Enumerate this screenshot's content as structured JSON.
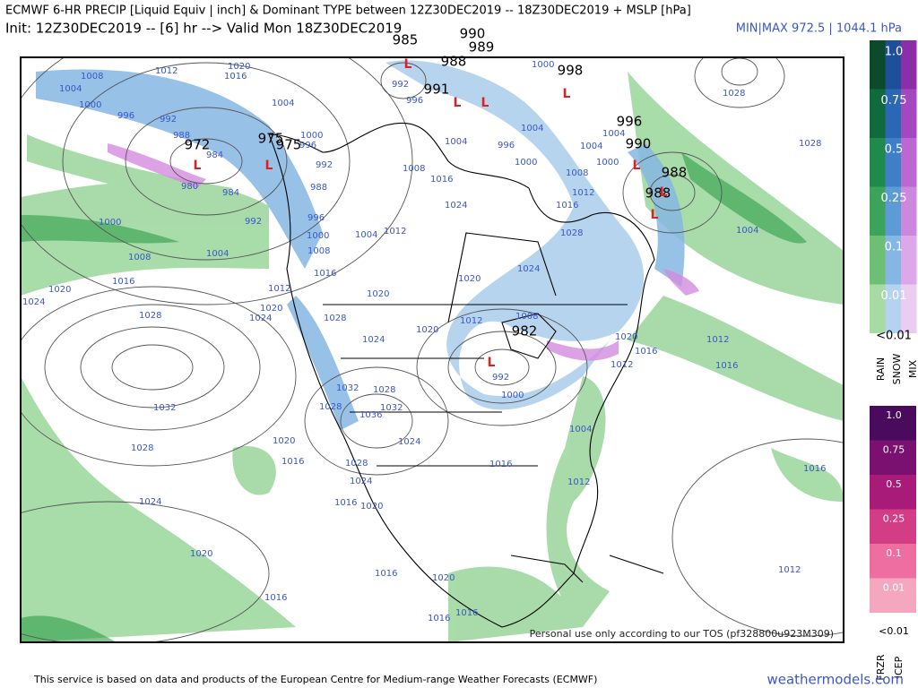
{
  "header": {
    "title": "ECMWF 6-HR PRECIP [Liquid Equiv | inch] & Dominant TYPE between 12Z30DEC2019 -- 18Z30DEC2019 + MSLP [hPa]",
    "init": "Init: 12Z30DEC2019 -- [6] hr --> Valid Mon 18Z30DEC2019",
    "minmax": "MIN|MAX 972.5 | 1044.1 hPa"
  },
  "legend_top": {
    "labels": [
      "1.0",
      "0.75",
      "0.5",
      "0.25",
      "0.1",
      "0.01"
    ],
    "below": "<0.01",
    "types": [
      "RAIN",
      "SNOW",
      "MIX"
    ]
  },
  "legend_bottom": {
    "labels": [
      "1.0",
      "0.75",
      "0.5",
      "0.25",
      "0.1",
      "0.01"
    ],
    "below": "<0.01",
    "types": [
      "FRZR",
      "ICEP"
    ]
  },
  "map": {
    "low_symbol": "L",
    "centers": [
      "985",
      "990",
      "989",
      "988",
      "998",
      "991",
      "972",
      "975",
      "975",
      "996",
      "990",
      "988",
      "988",
      "982"
    ],
    "isobar_labels": [
      "1012",
      "1008",
      "1004",
      "1000",
      "996",
      "992",
      "988",
      "984",
      "980",
      "984",
      "992",
      "1000",
      "1004",
      "1008",
      "1016",
      "1020",
      "1024",
      "1028",
      "1024",
      "1020",
      "1032",
      "1028",
      "1024",
      "1020",
      "1016",
      "1020",
      "1016",
      "1016",
      "1004",
      "1012",
      "1016",
      "1012",
      "1016",
      "1012",
      "1004",
      "1028",
      "1028",
      "1020",
      "1016",
      "1012",
      "1008",
      "1012",
      "1020",
      "1024",
      "1028",
      "1016",
      "1012",
      "1008",
      "1000",
      "996",
      "1004",
      "1004",
      "1000",
      "1004",
      "1000",
      "992",
      "996",
      "1004",
      "1004",
      "1008",
      "1016",
      "1024",
      "1004",
      "1012",
      "1020",
      "1024",
      "1020",
      "1032",
      "1028",
      "1036",
      "1032",
      "1028",
      "1024",
      "1028",
      "1024",
      "1016",
      "1020",
      "1016",
      "1020",
      "1016",
      "1016",
      "1000",
      "996",
      "992",
      "988",
      "996",
      "1000",
      "1008",
      "1016",
      "1012",
      "1028",
      "1000",
      "992",
      "1020",
      "1016"
    ],
    "watermark": "Personal use only according to our TOS (pf328800u923M309)"
  },
  "footer": {
    "credit": "This service is based on data and products of the European Centre for Medium-range Weather Forecasts (ECMWF)",
    "site": "weathermodels.com"
  }
}
